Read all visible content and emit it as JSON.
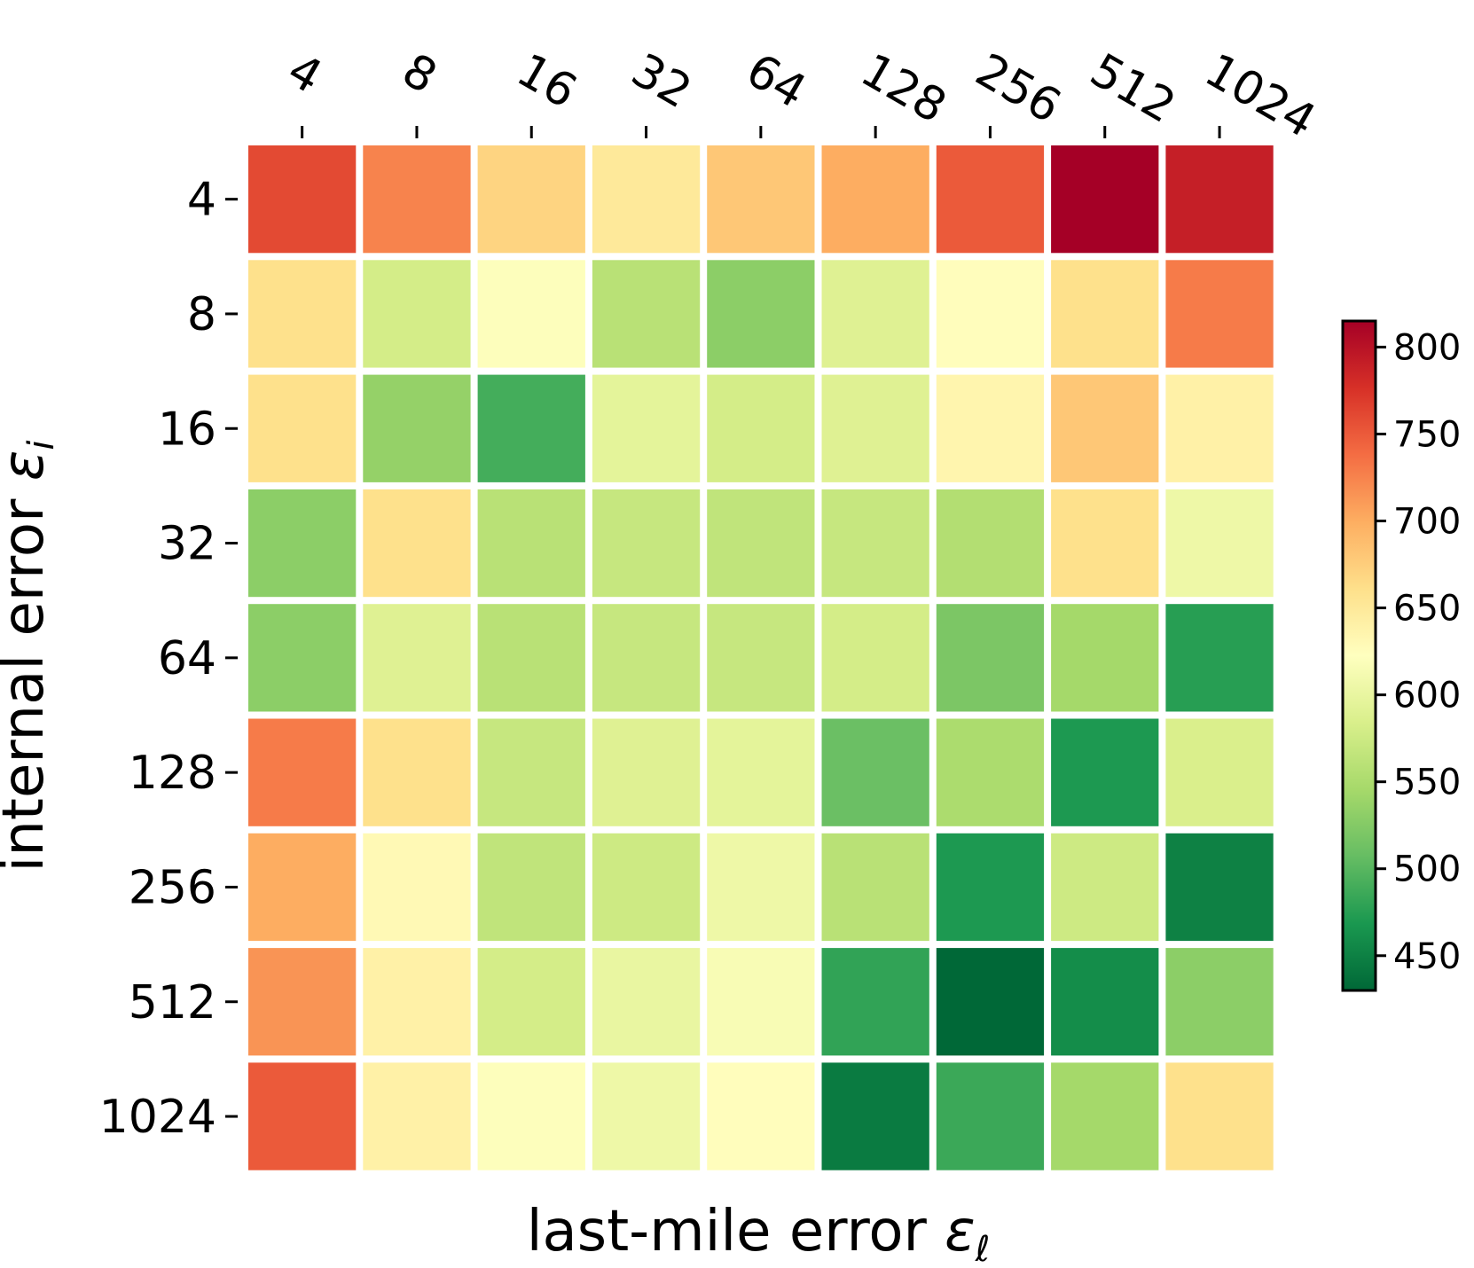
{
  "chart_data": {
    "type": "heatmap",
    "xlabel_text": "last-mile error ",
    "xlabel_symbol": "ε",
    "xlabel_sub": "ℓ",
    "ylabel_text": "internal error ",
    "ylabel_symbol": "ε",
    "ylabel_sub": "i",
    "x_categories": [
      "4",
      "8",
      "16",
      "32",
      "64",
      "128",
      "256",
      "512",
      "1024"
    ],
    "y_categories": [
      "4",
      "8",
      "16",
      "32",
      "64",
      "128",
      "256",
      "512",
      "1024"
    ],
    "values": [
      [
        760,
        725,
        670,
        650,
        680,
        700,
        750,
        815,
        790
      ],
      [
        660,
        580,
        620,
        560,
        530,
        590,
        625,
        660,
        730
      ],
      [
        660,
        535,
        490,
        595,
        580,
        590,
        635,
        680,
        640
      ],
      [
        530,
        660,
        560,
        570,
        565,
        570,
        555,
        660,
        605
      ],
      [
        530,
        590,
        560,
        570,
        570,
        580,
        520,
        545,
        475
      ],
      [
        730,
        660,
        570,
        590,
        595,
        510,
        550,
        470,
        585
      ],
      [
        700,
        630,
        565,
        575,
        605,
        560,
        470,
        575,
        450
      ],
      [
        715,
        640,
        580,
        600,
        615,
        480,
        430,
        460,
        530
      ],
      [
        750,
        640,
        620,
        605,
        625,
        445,
        485,
        545,
        660
      ]
    ],
    "colorbar": {
      "colormap": "RdYlGn_r",
      "vmin": 430,
      "vmax": 815,
      "ticks": [
        450,
        500,
        550,
        600,
        650,
        700,
        750,
        800
      ],
      "tick_labels": [
        "450",
        "500",
        "550",
        "600",
        "650",
        "700",
        "750",
        "800"
      ]
    },
    "x_tick_position": "top",
    "x_tick_rotation_deg": -60
  }
}
